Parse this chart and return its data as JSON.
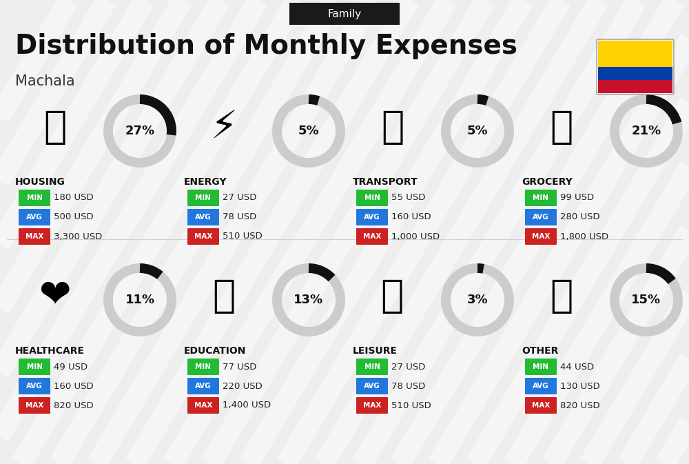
{
  "title": "Distribution of Monthly Expenses",
  "subtitle": "Family",
  "city": "Machala",
  "background_color": "#eeeeee",
  "header_bg": "#1a1a1a",
  "header_text_color": "#ffffff",
  "title_color": "#111111",
  "city_color": "#333333",
  "categories": [
    {
      "name": "HOUSING",
      "percent": 27,
      "min": "180 USD",
      "avg": "500 USD",
      "max": "3,300 USD",
      "row": 0,
      "col": 0
    },
    {
      "name": "ENERGY",
      "percent": 5,
      "min": "27 USD",
      "avg": "78 USD",
      "max": "510 USD",
      "row": 0,
      "col": 1
    },
    {
      "name": "TRANSPORT",
      "percent": 5,
      "min": "55 USD",
      "avg": "160 USD",
      "max": "1,000 USD",
      "row": 0,
      "col": 2
    },
    {
      "name": "GROCERY",
      "percent": 21,
      "min": "99 USD",
      "avg": "280 USD",
      "max": "1,800 USD",
      "row": 0,
      "col": 3
    },
    {
      "name": "HEALTHCARE",
      "percent": 11,
      "min": "49 USD",
      "avg": "160 USD",
      "max": "820 USD",
      "row": 1,
      "col": 0
    },
    {
      "name": "EDUCATION",
      "percent": 13,
      "min": "77 USD",
      "avg": "220 USD",
      "max": "1,400 USD",
      "row": 1,
      "col": 1
    },
    {
      "name": "LEISURE",
      "percent": 3,
      "min": "27 USD",
      "avg": "78 USD",
      "max": "510 USD",
      "row": 1,
      "col": 2
    },
    {
      "name": "OTHER",
      "percent": 15,
      "min": "44 USD",
      "avg": "130 USD",
      "max": "820 USD",
      "row": 1,
      "col": 3
    }
  ],
  "min_color": "#22bb33",
  "avg_color": "#2277dd",
  "max_color": "#cc2222",
  "label_text_color": "#ffffff",
  "value_text_color": "#222222",
  "category_name_color": "#111111",
  "donut_bg": "#cccccc",
  "donut_fill": "#111111",
  "donut_text": "#111111",
  "ecuador_flag_colors": [
    "#FFD100",
    "#003DA5",
    "#C8102E"
  ],
  "ecuador_flag_proportions": [
    0.5,
    0.25,
    0.25
  ],
  "stripe_color": "#ffffff",
  "stripe_alpha": 0.45,
  "stripe_lw": 22
}
